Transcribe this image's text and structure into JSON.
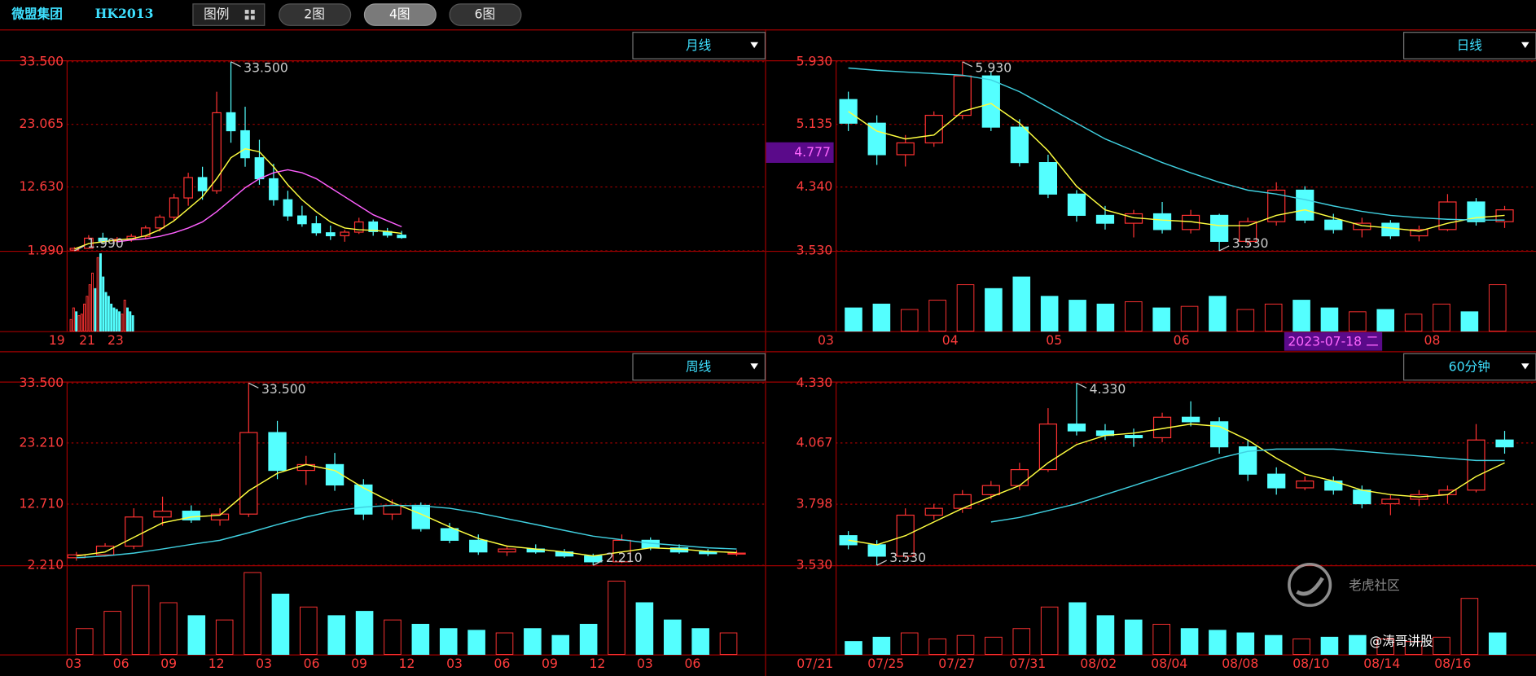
{
  "header": {
    "title": "微盟集团",
    "code": "HK2013",
    "buttons": [
      "图例",
      "2图",
      "4图",
      "6图"
    ],
    "watermark": "老虎社区",
    "author": "@涛哥讲股"
  },
  "chart_data": [
    {
      "type": "candlestick",
      "period": "月线",
      "up_color": "#ff3232",
      "down_color": "#54ffff",
      "ylim": [
        1.99,
        33.5
      ],
      "yticks": [
        {
          "value": 33.5,
          "label": "33.500"
        },
        23.065,
        {
          "value": 12.63,
          "label": "12.630"
        },
        {
          "value": 1.99,
          "label": "1.990"
        }
      ],
      "x_labels": [
        "19",
        "21",
        "23"
      ],
      "candles": [
        [
          2.1,
          2.6,
          1.99,
          2.4
        ],
        [
          2.4,
          4.6,
          2.3,
          4.1
        ],
        [
          4.1,
          5.0,
          3.2,
          3.6
        ],
        [
          3.6,
          4.3,
          3.0,
          3.9
        ],
        [
          3.9,
          4.8,
          3.5,
          4.4
        ],
        [
          4.4,
          6.2,
          4.0,
          5.8
        ],
        [
          5.8,
          8.0,
          5.2,
          7.6
        ],
        [
          7.6,
          11.5,
          7.0,
          10.8
        ],
        [
          10.8,
          15.0,
          9.5,
          14.2
        ],
        [
          14.2,
          16.0,
          10.5,
          12.0
        ],
        [
          12.0,
          28.5,
          11.5,
          25.0
        ],
        [
          25.0,
          33.5,
          20.0,
          22.0
        ],
        [
          22.0,
          26.0,
          16.0,
          17.5
        ],
        [
          17.5,
          20.5,
          13.0,
          14.0
        ],
        [
          14.0,
          16.5,
          9.5,
          10.5
        ],
        [
          10.5,
          12.0,
          7.0,
          7.8
        ],
        [
          7.8,
          9.5,
          6.0,
          6.5
        ],
        [
          6.5,
          7.8,
          4.5,
          5.0
        ],
        [
          5.0,
          6.2,
          3.8,
          4.5
        ],
        [
          4.5,
          5.5,
          3.5,
          5.1
        ],
        [
          5.1,
          7.5,
          4.8,
          6.8
        ],
        [
          6.8,
          7.2,
          4.5,
          5.2
        ],
        [
          5.2,
          5.8,
          4.2,
          4.6
        ],
        [
          4.6,
          5.3,
          4.0,
          4.2
        ]
      ],
      "volume": [
        15,
        30,
        25,
        20,
        22,
        35,
        45,
        60,
        75,
        55,
        95,
        100,
        70,
        50,
        45,
        35,
        30,
        28,
        25,
        22,
        40,
        30,
        25,
        20
      ],
      "volume_lim": [
        0,
        100
      ],
      "series": [
        {
          "color": "#ffff40",
          "values": [
            2.3,
            3.2,
            3.5,
            3.8,
            4.0,
            4.5,
            5.5,
            7.0,
            9.0,
            11.0,
            14.0,
            17.5,
            19.0,
            18.5,
            16.0,
            13.0,
            10.5,
            8.5,
            6.8,
            5.8,
            5.5,
            5.4,
            5.2,
            4.9
          ]
        },
        {
          "color": "#ff60ff",
          "values": [
            null,
            null,
            null,
            3.5,
            3.8,
            4.0,
            4.4,
            5.0,
            5.8,
            6.8,
            8.5,
            10.5,
            12.5,
            14.0,
            15.0,
            15.5,
            15.0,
            14.0,
            12.5,
            11.0,
            9.5,
            8.0,
            7.0,
            6.0
          ]
        }
      ],
      "annotations": [
        {
          "value": 33.5,
          "label": "33.500"
        },
        {
          "value": 1.99,
          "label": "1.990"
        }
      ]
    },
    {
      "type": "candlestick",
      "period": "日线",
      "up_color": "#ff3232",
      "down_color": "#54ffff",
      "ylim": [
        3.53,
        5.93
      ],
      "yticks": [
        {
          "value": 5.93,
          "label": "5.930"
        },
        5.135,
        {
          "value": 4.34,
          "label": "4.340"
        },
        {
          "value": 3.53,
          "label": "3.530"
        }
      ],
      "x_labels": [
        "03",
        "04",
        "05",
        "06",
        "08"
      ],
      "candles": [
        [
          5.45,
          5.55,
          5.05,
          5.15
        ],
        [
          5.15,
          5.25,
          4.62,
          4.75
        ],
        [
          4.75,
          5.0,
          4.6,
          4.9
        ],
        [
          4.9,
          5.3,
          4.85,
          5.25
        ],
        [
          5.25,
          5.93,
          5.2,
          5.75
        ],
        [
          5.75,
          5.8,
          5.05,
          5.1
        ],
        [
          5.1,
          5.2,
          4.6,
          4.65
        ],
        [
          4.65,
          4.75,
          4.2,
          4.25
        ],
        [
          4.25,
          4.3,
          3.9,
          3.98
        ],
        [
          3.98,
          4.1,
          3.8,
          3.88
        ],
        [
          3.88,
          4.05,
          3.7,
          4.0
        ],
        [
          4.0,
          4.15,
          3.75,
          3.8
        ],
        [
          3.8,
          4.05,
          3.75,
          3.98
        ],
        [
          3.98,
          4.0,
          3.53,
          3.65
        ],
        [
          3.65,
          3.95,
          3.6,
          3.9
        ],
        [
          3.9,
          4.4,
          3.85,
          4.3
        ],
        [
          4.3,
          4.35,
          3.88,
          3.92
        ],
        [
          3.92,
          4.0,
          3.75,
          3.8
        ],
        [
          3.8,
          3.95,
          3.7,
          3.88
        ],
        [
          3.88,
          3.92,
          3.68,
          3.72
        ],
        [
          3.72,
          3.85,
          3.65,
          3.8
        ],
        [
          3.8,
          4.25,
          3.78,
          4.15
        ],
        [
          4.15,
          4.2,
          3.85,
          3.9
        ],
        [
          3.9,
          4.1,
          3.82,
          4.05
        ]
      ],
      "volume": [
        30,
        35,
        28,
        40,
        60,
        55,
        70,
        45,
        40,
        35,
        38,
        30,
        32,
        45,
        28,
        35,
        40,
        30,
        25,
        28,
        22,
        35,
        25,
        60
      ],
      "volume_lim": [
        0,
        100
      ],
      "series": [
        {
          "color": "#ffff40",
          "values": [
            5.3,
            5.05,
            4.95,
            5.0,
            5.3,
            5.4,
            5.15,
            4.8,
            4.35,
            4.05,
            3.95,
            3.92,
            3.9,
            3.85,
            3.85,
            3.98,
            4.05,
            3.95,
            3.85,
            3.82,
            3.78,
            3.88,
            3.95,
            3.98
          ]
        },
        {
          "color": "#40d0e0",
          "values": [
            5.85,
            5.82,
            5.8,
            5.78,
            5.76,
            5.7,
            5.55,
            5.35,
            5.15,
            4.95,
            4.8,
            4.65,
            4.52,
            4.4,
            4.3,
            4.25,
            4.18,
            4.1,
            4.03,
            3.98,
            3.95,
            3.93,
            3.92,
            3.92
          ]
        }
      ],
      "annotations": [
        {
          "value": 5.93,
          "label": "5.930"
        },
        {
          "value": 3.53,
          "label": "3.530"
        }
      ],
      "crosshair": {
        "value": 4.777,
        "date": "2023-07-18 二"
      }
    },
    {
      "type": "candlestick",
      "period": "周线",
      "up_color": "#ff3232",
      "down_color": "#54ffff",
      "ylim": [
        2.21,
        33.5
      ],
      "yticks": [
        {
          "value": 33.5,
          "label": "33.500"
        },
        {
          "value": 23.21,
          "label": "23.210"
        },
        {
          "value": 12.71,
          "label": "12.710"
        },
        {
          "value": 2.21,
          "label": "2.210"
        }
      ],
      "x_labels": [
        "03",
        "06",
        "09",
        "12",
        "03",
        "06",
        "09",
        "12",
        "03",
        "06",
        "09",
        "12",
        "03",
        "06"
      ],
      "candles": [
        [
          3.5,
          4.5,
          3.0,
          4.0
        ],
        [
          4.0,
          6.0,
          3.8,
          5.5
        ],
        [
          5.5,
          12.0,
          5.0,
          10.5
        ],
        [
          10.5,
          14.0,
          9.0,
          11.5
        ],
        [
          11.5,
          12.5,
          9.5,
          10.0
        ],
        [
          10.0,
          12.0,
          9.0,
          11.0
        ],
        [
          11.0,
          33.5,
          10.5,
          25.0
        ],
        [
          25.0,
          27.0,
          17.0,
          18.5
        ],
        [
          18.5,
          21.0,
          16.0,
          19.5
        ],
        [
          19.5,
          21.5,
          15.0,
          16.0
        ],
        [
          16.0,
          17.0,
          10.0,
          11.0
        ],
        [
          11.0,
          13.5,
          10.0,
          12.5
        ],
        [
          12.5,
          13.0,
          8.0,
          8.5
        ],
        [
          8.5,
          9.5,
          6.0,
          6.5
        ],
        [
          6.5,
          7.5,
          4.0,
          4.5
        ],
        [
          4.5,
          5.5,
          3.8,
          5.0
        ],
        [
          5.0,
          5.8,
          4.2,
          4.5
        ],
        [
          4.5,
          5.0,
          3.5,
          3.8
        ],
        [
          3.8,
          4.2,
          2.21,
          2.8
        ],
        [
          2.8,
          7.5,
          2.6,
          6.5
        ],
        [
          6.5,
          7.0,
          4.8,
          5.2
        ],
        [
          5.2,
          5.8,
          4.2,
          4.5
        ],
        [
          4.5,
          5.0,
          3.8,
          4.2
        ],
        [
          4.2,
          4.8,
          3.8,
          4.3
        ]
      ],
      "volume": [
        30,
        50,
        80,
        60,
        45,
        40,
        95,
        70,
        55,
        45,
        50,
        40,
        35,
        30,
        28,
        25,
        30,
        22,
        35,
        85,
        60,
        40,
        30,
        25
      ],
      "volume_lim": [
        0,
        100
      ],
      "series": [
        {
          "color": "#ffff40",
          "values": [
            3.8,
            4.5,
            7.0,
            9.5,
            10.5,
            10.8,
            15.0,
            18.0,
            19.5,
            18.5,
            15.5,
            13.0,
            11.0,
            8.8,
            6.8,
            5.5,
            5.0,
            4.5,
            3.8,
            4.5,
            5.2,
            5.0,
            4.6,
            4.4
          ]
        },
        {
          "color": "#40d0e0",
          "values": [
            3.5,
            3.8,
            4.3,
            5.0,
            5.8,
            6.5,
            7.8,
            9.2,
            10.5,
            11.6,
            12.2,
            12.5,
            12.4,
            12.0,
            11.2,
            10.2,
            9.2,
            8.2,
            7.2,
            6.6,
            6.0,
            5.6,
            5.2,
            5.0
          ]
        }
      ],
      "annotations": [
        {
          "value": 33.5,
          "label": "33.500"
        },
        {
          "value": 2.21,
          "label": "2.210"
        }
      ]
    },
    {
      "type": "candlestick",
      "period": "60分钟",
      "up_color": "#ff3232",
      "down_color": "#54ffff",
      "ylim": [
        3.53,
        4.33
      ],
      "yticks": [
        {
          "value": 4.33,
          "label": "4.330"
        },
        4.067,
        3.798,
        {
          "value": 3.53,
          "label": "3.530"
        }
      ],
      "x_labels": [
        "07/21",
        "07/25",
        "07/27",
        "07/31",
        "08/02",
        "08/04",
        "08/08",
        "08/10",
        "08/14",
        "08/16"
      ],
      "candles": [
        [
          3.66,
          3.68,
          3.6,
          3.62
        ],
        [
          3.62,
          3.64,
          3.53,
          3.57
        ],
        [
          3.57,
          3.78,
          3.56,
          3.75
        ],
        [
          3.75,
          3.8,
          3.73,
          3.78
        ],
        [
          3.78,
          3.86,
          3.76,
          3.84
        ],
        [
          3.84,
          3.9,
          3.82,
          3.88
        ],
        [
          3.88,
          3.98,
          3.86,
          3.95
        ],
        [
          3.95,
          4.22,
          3.94,
          4.15
        ],
        [
          4.15,
          4.33,
          4.1,
          4.12
        ],
        [
          4.12,
          4.15,
          4.08,
          4.1
        ],
        [
          4.1,
          4.13,
          4.05,
          4.09
        ],
        [
          4.09,
          4.2,
          4.07,
          4.18
        ],
        [
          4.18,
          4.25,
          4.14,
          4.16
        ],
        [
          4.16,
          4.18,
          4.02,
          4.05
        ],
        [
          4.05,
          4.08,
          3.9,
          3.93
        ],
        [
          3.93,
          3.96,
          3.84,
          3.87
        ],
        [
          3.87,
          3.92,
          3.86,
          3.9
        ],
        [
          3.9,
          3.92,
          3.84,
          3.86
        ],
        [
          3.86,
          3.88,
          3.78,
          3.8
        ],
        [
          3.8,
          3.84,
          3.75,
          3.82
        ],
        [
          3.82,
          3.86,
          3.79,
          3.84
        ],
        [
          3.84,
          3.88,
          3.8,
          3.86
        ],
        [
          3.86,
          4.15,
          3.85,
          4.08
        ],
        [
          4.08,
          4.12,
          4.02,
          4.05
        ]
      ],
      "volume": [
        15,
        20,
        25,
        18,
        22,
        20,
        30,
        55,
        60,
        45,
        40,
        35,
        30,
        28,
        25,
        22,
        18,
        20,
        22,
        18,
        15,
        20,
        65,
        25
      ],
      "volume_lim": [
        0,
        100
      ],
      "series": [
        {
          "color": "#ffff40",
          "values": [
            3.64,
            3.62,
            3.66,
            3.72,
            3.78,
            3.83,
            3.88,
            3.98,
            4.06,
            4.1,
            4.11,
            4.13,
            4.15,
            4.14,
            4.08,
            4.0,
            3.93,
            3.9,
            3.86,
            3.84,
            3.83,
            3.84,
            3.92,
            3.98
          ]
        },
        {
          "color": "#40d0e0",
          "values": [
            null,
            null,
            null,
            null,
            null,
            3.72,
            3.74,
            3.77,
            3.8,
            3.84,
            3.88,
            3.92,
            3.96,
            4.0,
            4.03,
            4.04,
            4.04,
            4.04,
            4.03,
            4.02,
            4.01,
            4.0,
            3.99,
            3.99
          ]
        }
      ],
      "annotations": [
        {
          "value": 4.33,
          "label": "4.330"
        },
        {
          "value": 3.53,
          "label": "3.530"
        }
      ]
    }
  ]
}
